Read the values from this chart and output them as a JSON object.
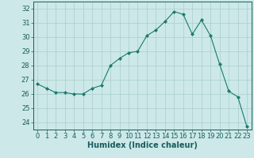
{
  "x": [
    0,
    1,
    2,
    3,
    4,
    5,
    6,
    7,
    8,
    9,
    10,
    11,
    12,
    13,
    14,
    15,
    16,
    17,
    18,
    19,
    20,
    21,
    22,
    23
  ],
  "y": [
    26.7,
    26.4,
    26.1,
    26.1,
    26.0,
    26.0,
    26.4,
    26.6,
    28.0,
    28.5,
    28.9,
    29.0,
    30.1,
    30.5,
    31.1,
    31.8,
    31.6,
    30.2,
    31.2,
    30.1,
    28.1,
    26.2,
    25.8,
    23.7
  ],
  "line_color": "#1a7a6e",
  "marker": "D",
  "marker_size": 2.0,
  "bg_color": "#cce8e8",
  "grid_color": "#aacece",
  "xlabel": "Humidex (Indice chaleur)",
  "xlim": [
    -0.5,
    23.5
  ],
  "ylim": [
    23.5,
    32.5
  ],
  "yticks": [
    24,
    25,
    26,
    27,
    28,
    29,
    30,
    31,
    32
  ],
  "xticks": [
    0,
    1,
    2,
    3,
    4,
    5,
    6,
    7,
    8,
    9,
    10,
    11,
    12,
    13,
    14,
    15,
    16,
    17,
    18,
    19,
    20,
    21,
    22,
    23
  ],
  "tick_color": "#1a5c5c",
  "label_fontsize": 7.0,
  "tick_fontsize": 6.0
}
